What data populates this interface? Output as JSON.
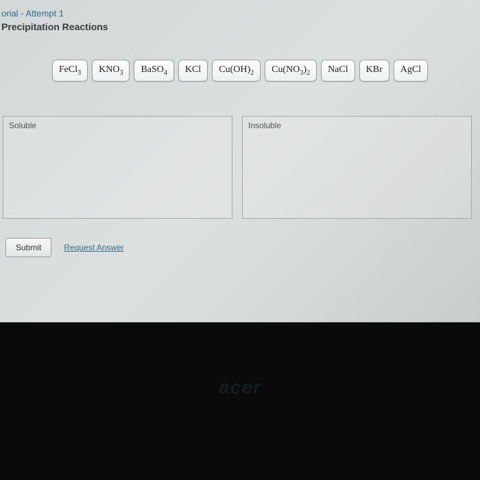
{
  "header": {
    "breadcrumb": "orial - Attempt 1",
    "title": "Precipitation Reactions"
  },
  "compounds": [
    {
      "html": "FeCl<sub>3</sub>"
    },
    {
      "html": "KNO<sub>3</sub>"
    },
    {
      "html": "BaSO<sub>4</sub>"
    },
    {
      "html": "KCl"
    },
    {
      "html": "Cu(OH)<sub>2</sub>"
    },
    {
      "html": "Cu(NO<sub>3</sub>)<sub>2</sub>"
    },
    {
      "html": "NaCl"
    },
    {
      "html": "KBr"
    },
    {
      "html": "AgCl"
    }
  ],
  "zones": {
    "left": "Soluble",
    "right": "Insoluble"
  },
  "footer": {
    "submit": "Submit",
    "request": "Request Answer"
  },
  "device_brand": "acer",
  "colors": {
    "link": "#2f6f8f",
    "panel_bg": "#d8dcdc",
    "tile_border": "#9aa0a0"
  }
}
